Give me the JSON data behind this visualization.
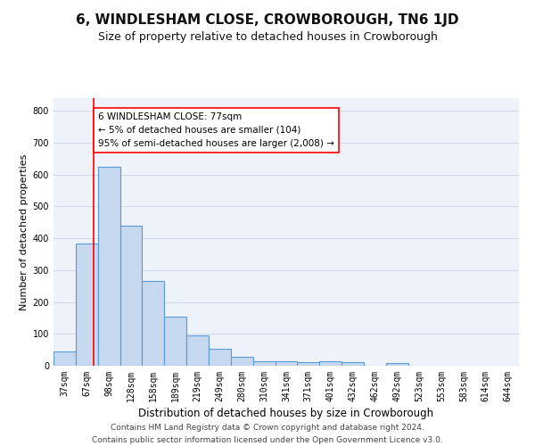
{
  "title": "6, WINDLESHAM CLOSE, CROWBOROUGH, TN6 1JD",
  "subtitle": "Size of property relative to detached houses in Crowborough",
  "xlabel": "Distribution of detached houses by size in Crowborough",
  "ylabel": "Number of detached properties",
  "categories": [
    "37sqm",
    "67sqm",
    "98sqm",
    "128sqm",
    "158sqm",
    "189sqm",
    "219sqm",
    "249sqm",
    "280sqm",
    "310sqm",
    "341sqm",
    "371sqm",
    "401sqm",
    "432sqm",
    "462sqm",
    "492sqm",
    "523sqm",
    "553sqm",
    "583sqm",
    "614sqm",
    "644sqm"
  ],
  "values": [
    45,
    385,
    625,
    440,
    265,
    155,
    95,
    52,
    28,
    15,
    13,
    10,
    13,
    10,
    0,
    8,
    0,
    0,
    0,
    0,
    0
  ],
  "bar_color": "#c5d8f0",
  "bar_edge_color": "#5b9bd5",
  "bar_linewidth": 0.8,
  "vline_color": "red",
  "annotation_text": "6 WINDLESHAM CLOSE: 77sqm\n← 5% of detached houses are smaller (104)\n95% of semi-detached houses are larger (2,008) →",
  "annotation_box_color": "white",
  "annotation_box_edge": "red",
  "ylim": [
    0,
    840
  ],
  "yticks": [
    0,
    100,
    200,
    300,
    400,
    500,
    600,
    700,
    800
  ],
  "grid_color": "#cdd8ea",
  "background_color": "#eef2f9",
  "footer": "Contains HM Land Registry data © Crown copyright and database right 2024.\nContains public sector information licensed under the Open Government Licence v3.0.",
  "title_fontsize": 11,
  "subtitle_fontsize": 9,
  "xlabel_fontsize": 8.5,
  "ylabel_fontsize": 8,
  "tick_fontsize": 7,
  "annotation_fontsize": 7.5,
  "footer_fontsize": 6.5
}
